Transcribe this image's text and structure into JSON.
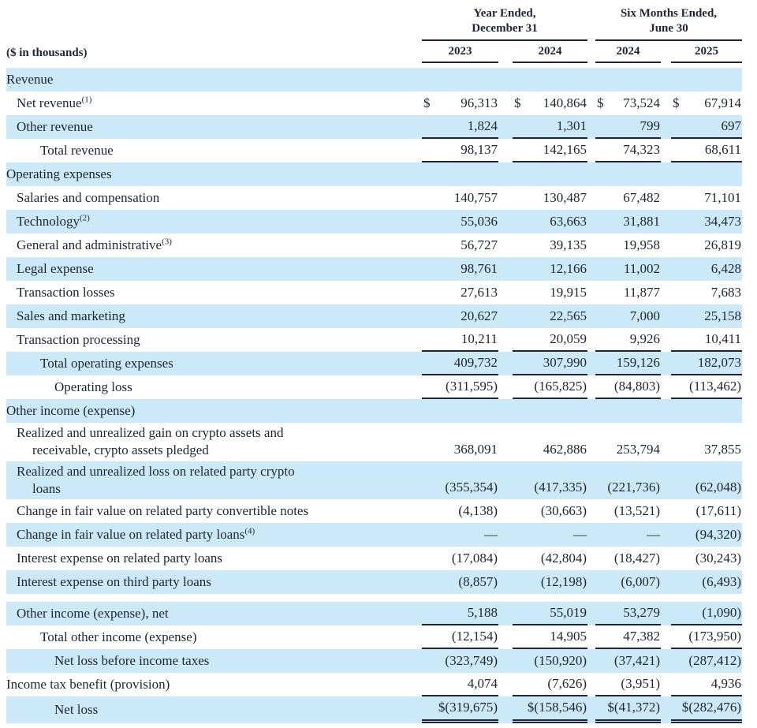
{
  "table": {
    "unit_label": "($ in thousands)",
    "colors": {
      "row_blue": "#cbe9f8",
      "text": "#1f2535",
      "line": "#1f2535"
    },
    "col_groups": [
      {
        "line1": "Year Ended,",
        "line2": "December 31",
        "years": [
          "2023",
          "2024"
        ]
      },
      {
        "line1": "Six Months Ended,",
        "line2": "June 30",
        "years": [
          "2024",
          "2025"
        ]
      }
    ],
    "rows": [
      {
        "type": "section",
        "label": "Revenue",
        "indent": 0,
        "bg": "blue"
      },
      {
        "label": "Net revenue",
        "sup": "(1)",
        "indent": 1,
        "bg": "white",
        "cells": [
          {
            "d": "$",
            "v": "96,313"
          },
          {
            "d": "$",
            "v": "140,864"
          },
          {
            "d": "$",
            "v": "73,524"
          },
          {
            "d": "$",
            "v": "67,914"
          }
        ]
      },
      {
        "label": "Other revenue",
        "indent": 1,
        "bg": "blue",
        "underline": "single",
        "cells": [
          {
            "v": "1,824"
          },
          {
            "v": "1,301"
          },
          {
            "v": "799"
          },
          {
            "v": "697"
          }
        ]
      },
      {
        "label": "Total revenue",
        "indent": 2,
        "bg": "white",
        "underline": "single",
        "cells": [
          {
            "v": "98,137"
          },
          {
            "v": "142,165"
          },
          {
            "v": "74,323"
          },
          {
            "v": "68,611"
          }
        ]
      },
      {
        "type": "section",
        "label": "Operating expenses",
        "indent": 0,
        "bg": "blue"
      },
      {
        "label": "Salaries and compensation",
        "indent": 1,
        "bg": "white",
        "cells": [
          {
            "v": "140,757"
          },
          {
            "v": "130,487"
          },
          {
            "v": "67,482"
          },
          {
            "v": "71,101"
          }
        ]
      },
      {
        "label": "Technology",
        "sup": "(2)",
        "indent": 1,
        "bg": "blue",
        "cells": [
          {
            "v": "55,036"
          },
          {
            "v": "63,663"
          },
          {
            "v": "31,881"
          },
          {
            "v": "34,473"
          }
        ]
      },
      {
        "label": "General and administrative",
        "sup": "(3)",
        "indent": 1,
        "bg": "white",
        "cells": [
          {
            "v": "56,727"
          },
          {
            "v": "39,135"
          },
          {
            "v": "19,958"
          },
          {
            "v": "26,819"
          }
        ]
      },
      {
        "label": "Legal expense",
        "indent": 1,
        "bg": "blue",
        "cells": [
          {
            "v": "98,761"
          },
          {
            "v": "12,166"
          },
          {
            "v": "11,002"
          },
          {
            "v": "6,428"
          }
        ]
      },
      {
        "label": "Transaction losses",
        "indent": 1,
        "bg": "white",
        "cells": [
          {
            "v": "27,613"
          },
          {
            "v": "19,915"
          },
          {
            "v": "11,877"
          },
          {
            "v": "7,683"
          }
        ]
      },
      {
        "label": "Sales and marketing",
        "indent": 1,
        "bg": "blue",
        "cells": [
          {
            "v": "20,627"
          },
          {
            "v": "22,565"
          },
          {
            "v": "7,000"
          },
          {
            "v": "25,158"
          }
        ]
      },
      {
        "label": "Transaction processing",
        "indent": 1,
        "bg": "white",
        "underline": "single",
        "cells": [
          {
            "v": "10,211"
          },
          {
            "v": "20,059"
          },
          {
            "v": "9,926"
          },
          {
            "v": "10,411"
          }
        ]
      },
      {
        "label": "Total operating expenses",
        "indent": 2,
        "bg": "blue",
        "underline": "single",
        "cells": [
          {
            "v": "409,732"
          },
          {
            "v": "307,990"
          },
          {
            "v": "159,126"
          },
          {
            "v": "182,073"
          }
        ]
      },
      {
        "label": "Operating loss",
        "indent": 3,
        "bg": "white",
        "underline": "single",
        "cells": [
          {
            "v": "(311,595)"
          },
          {
            "v": "(165,825)"
          },
          {
            "v": "(84,803)"
          },
          {
            "v": "(113,462)"
          }
        ]
      },
      {
        "type": "section",
        "label": "Other income (expense)",
        "indent": 0,
        "bg": "blue"
      },
      {
        "label": "Realized and unrealized gain on crypto assets and",
        "label2": "receivable, crypto assets pledged",
        "indent": 1,
        "bg": "white",
        "cells": [
          {
            "v": "368,091"
          },
          {
            "v": "462,886"
          },
          {
            "v": "253,794"
          },
          {
            "v": "37,855"
          }
        ]
      },
      {
        "label": "Realized and unrealized loss on related party crypto",
        "label2": "loans",
        "indent": 1,
        "bg": "blue",
        "cells": [
          {
            "v": "(355,354)"
          },
          {
            "v": "(417,335)"
          },
          {
            "v": "(221,736)"
          },
          {
            "v": "(62,048)"
          }
        ]
      },
      {
        "label": "Change in fair value on related party convertible notes",
        "indent": 1,
        "bg": "white",
        "cells": [
          {
            "v": "(4,138)"
          },
          {
            "v": "(30,663)"
          },
          {
            "v": "(13,521)"
          },
          {
            "v": "(17,611)"
          }
        ]
      },
      {
        "label": "Change in fair value on related party loans",
        "sup": "(4)",
        "indent": 1,
        "bg": "blue",
        "cells": [
          {
            "v": "—"
          },
          {
            "v": "—"
          },
          {
            "v": "—"
          },
          {
            "v": "(94,320)"
          }
        ]
      },
      {
        "label": "Interest expense on related party loans",
        "indent": 1,
        "bg": "white",
        "cells": [
          {
            "v": "(17,084)"
          },
          {
            "v": "(42,804)"
          },
          {
            "v": "(18,427)"
          },
          {
            "v": "(30,243)"
          }
        ]
      },
      {
        "label": "Interest expense on third party loans",
        "indent": 1,
        "bg": "blue",
        "cells": [
          {
            "v": "(8,857)"
          },
          {
            "v": "(12,198)"
          },
          {
            "v": "(6,007)"
          },
          {
            "v": "(6,493)"
          }
        ]
      },
      {
        "type": "spacer",
        "bg": "white"
      },
      {
        "label": "Other income (expense), net",
        "indent": 1,
        "bg": "blue",
        "underline": "single",
        "cells": [
          {
            "v": "5,188"
          },
          {
            "v": "55,019"
          },
          {
            "v": "53,279"
          },
          {
            "v": "(1,090)"
          }
        ]
      },
      {
        "label": "Total other income (expense)",
        "indent": 2,
        "bg": "white",
        "underline": "single",
        "cells": [
          {
            "v": "(12,154)"
          },
          {
            "v": "14,905"
          },
          {
            "v": "47,382"
          },
          {
            "v": "(173,950)"
          }
        ]
      },
      {
        "label": "Net loss before income taxes",
        "indent": 3,
        "bg": "blue",
        "cells": [
          {
            "v": "(323,749)"
          },
          {
            "v": "(150,920)"
          },
          {
            "v": "(37,421)"
          },
          {
            "v": "(287,412)"
          }
        ]
      },
      {
        "label": "Income tax benefit (provision)",
        "indent": 0,
        "bg": "white",
        "underline": "single",
        "cells": [
          {
            "v": "4,074"
          },
          {
            "v": "(7,626)"
          },
          {
            "v": "(3,951)"
          },
          {
            "v": "4,936"
          }
        ]
      },
      {
        "label": "Net loss",
        "indent": 3,
        "bg": "blue",
        "underline": "double",
        "netloss": true,
        "cells": [
          {
            "v": "$(319,675)"
          },
          {
            "v": "$(158,546)"
          },
          {
            "v": "$(41,372)"
          },
          {
            "v": "$(282,476)"
          }
        ]
      }
    ]
  }
}
